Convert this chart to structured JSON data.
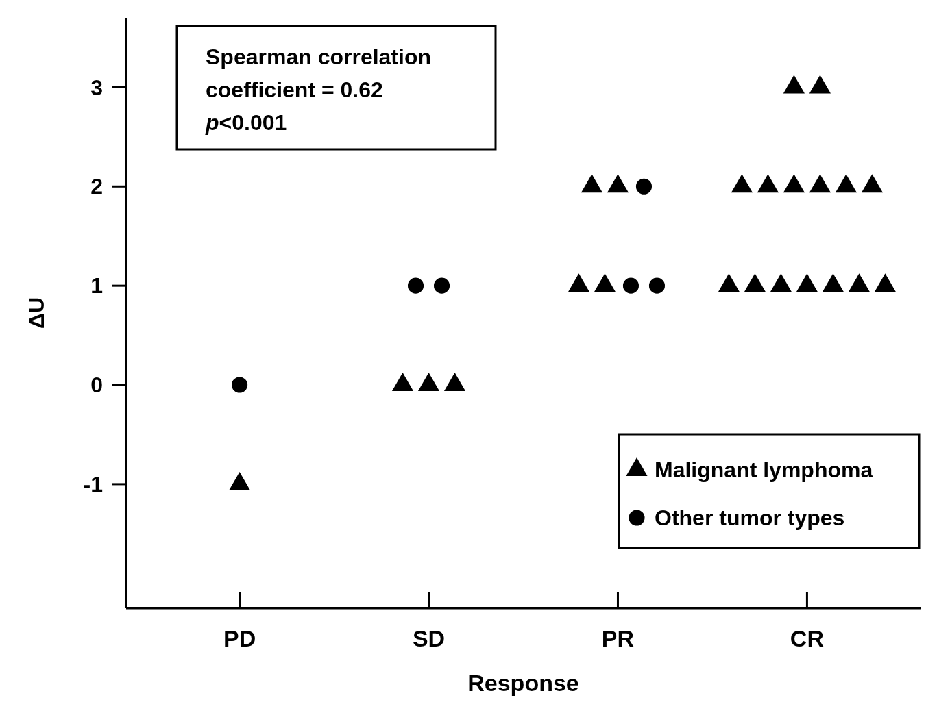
{
  "chart_data": {
    "type": "scatter",
    "xlabel": "Response",
    "ylabel": "ΔU",
    "categories": [
      "PD",
      "SD",
      "PR",
      "CR"
    ],
    "ylim": [
      -2.25,
      3.7
    ],
    "yticks": [
      -1,
      0,
      1,
      2,
      3
    ],
    "grid": false,
    "legend": "bottom right",
    "annotations": [
      "Spearman correlation coefficient = 0.62",
      "p<0.001"
    ],
    "series": [
      {
        "name": "Malignant lymphoma",
        "color": "#000000",
        "marker": "triangle",
        "x": [
          "PD",
          "SD",
          "SD",
          "SD",
          "PR",
          "PR",
          "PR",
          "PR",
          "CR",
          "CR",
          "CR",
          "CR",
          "CR",
          "CR",
          "CR",
          "CR",
          "CR",
          "CR",
          "CR",
          "CR",
          "CR",
          "CR",
          "CR"
        ],
        "values": [
          -1,
          0,
          0,
          0,
          2,
          2,
          1,
          1,
          3,
          3,
          2,
          2,
          2,
          2,
          2,
          2,
          1,
          1,
          1,
          1,
          1,
          1,
          1
        ]
      },
      {
        "name": "Other tumor types",
        "color": "#000000",
        "marker": "circle",
        "x": [
          "PD",
          "SD",
          "SD",
          "PR",
          "PR",
          "PR"
        ],
        "values": [
          0,
          1,
          1,
          2,
          1,
          1
        ]
      }
    ]
  }
}
